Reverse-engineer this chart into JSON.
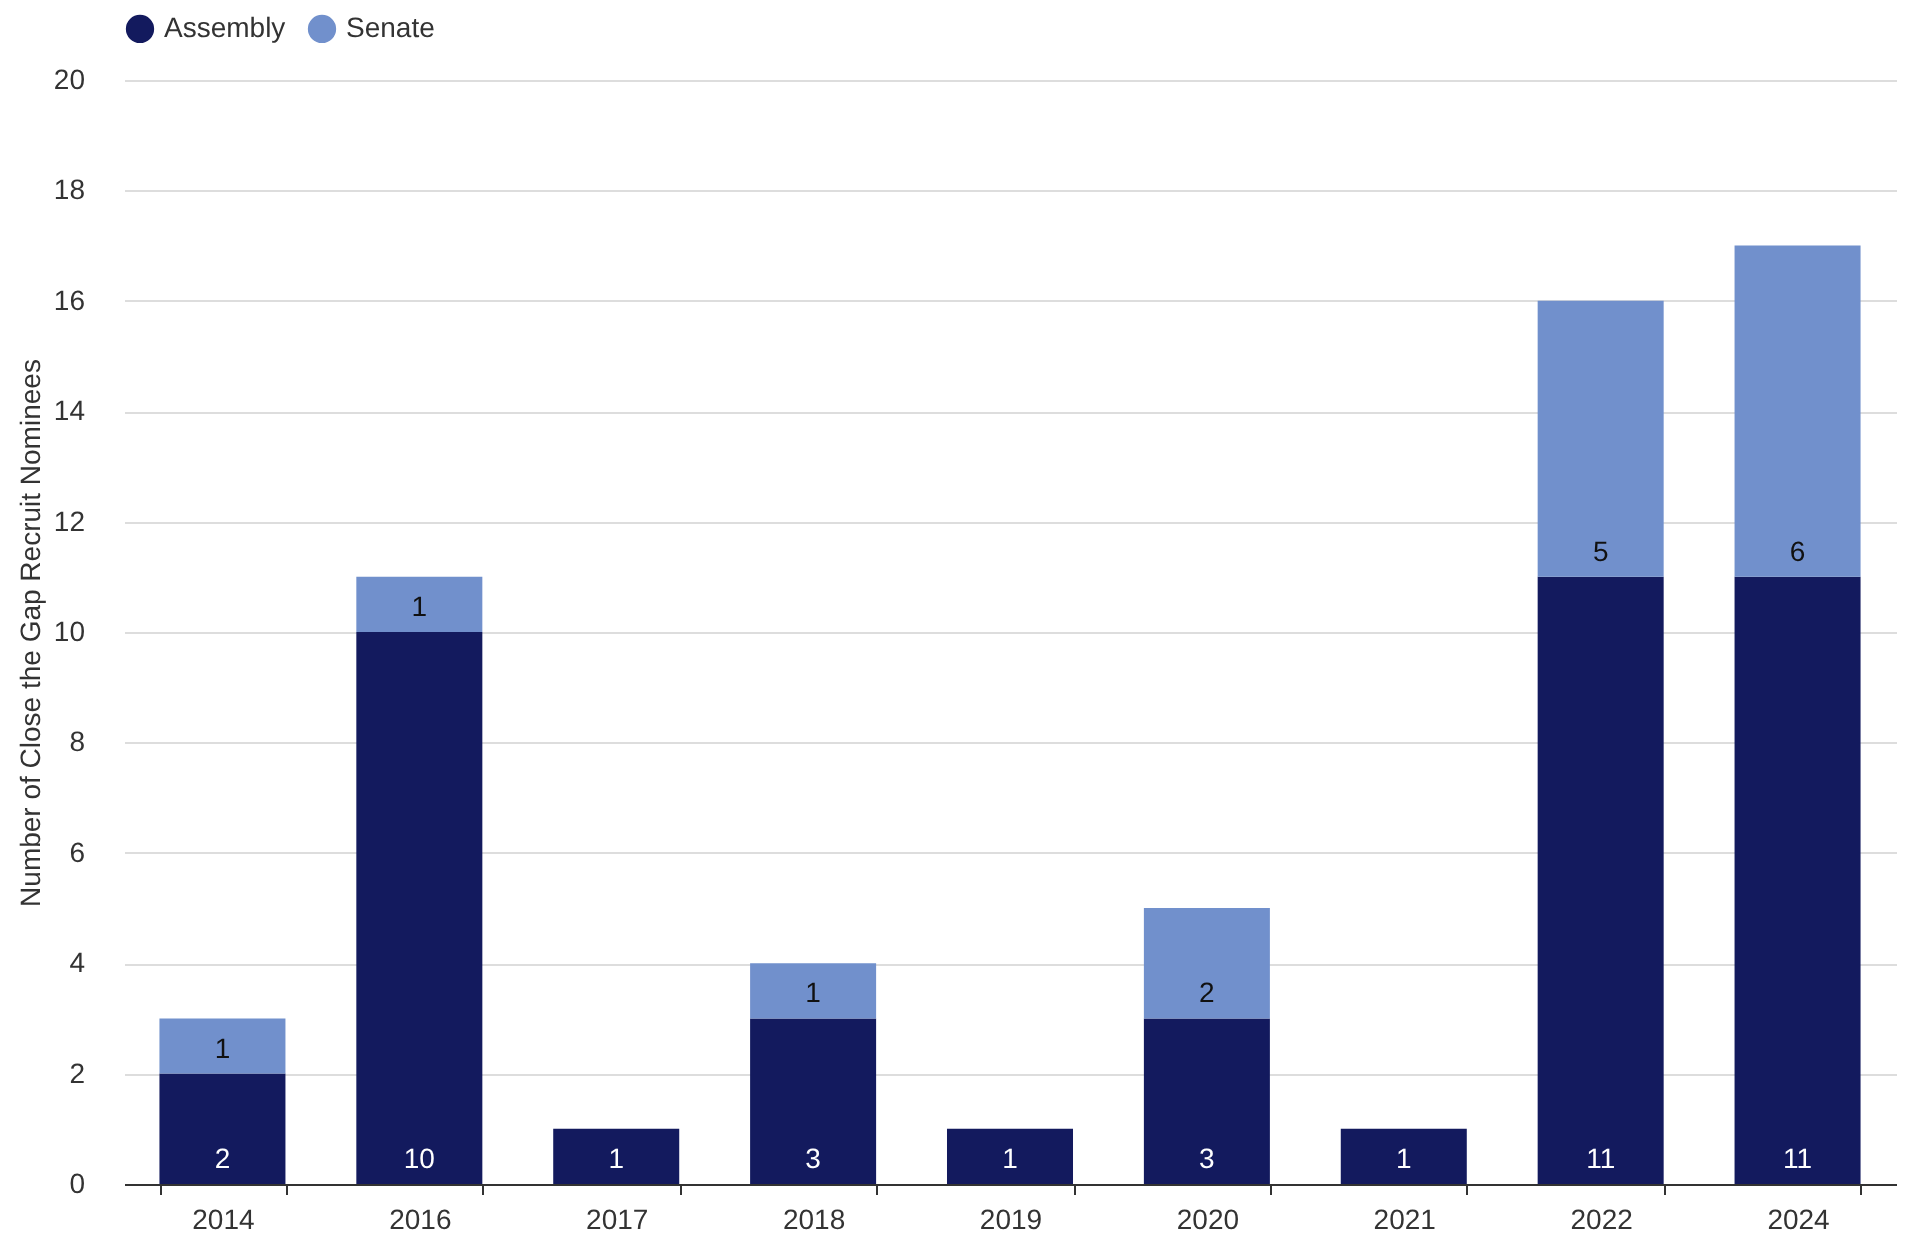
{
  "chart_data": {
    "type": "bar",
    "stacked": true,
    "ylabel": "Number of Close the Gap Recruit Nominees",
    "categories": [
      "2014",
      "2016",
      "2017",
      "2018",
      "2019",
      "2020",
      "2021",
      "2022",
      "2024"
    ],
    "series": [
      {
        "name": "Assembly",
        "color": "#131a5e",
        "values": [
          2,
          10,
          1,
          3,
          1,
          3,
          1,
          11,
          11
        ]
      },
      {
        "name": "Senate",
        "color": "#7190cc",
        "values": [
          1,
          1,
          null,
          1,
          null,
          2,
          null,
          5,
          6
        ]
      }
    ],
    "ylim": [
      0,
      20
    ],
    "yticks": [
      0,
      2,
      4,
      6,
      8,
      10,
      12,
      14,
      16,
      18,
      20
    ],
    "grid": "y",
    "legend": "top",
    "data_labels": true
  }
}
